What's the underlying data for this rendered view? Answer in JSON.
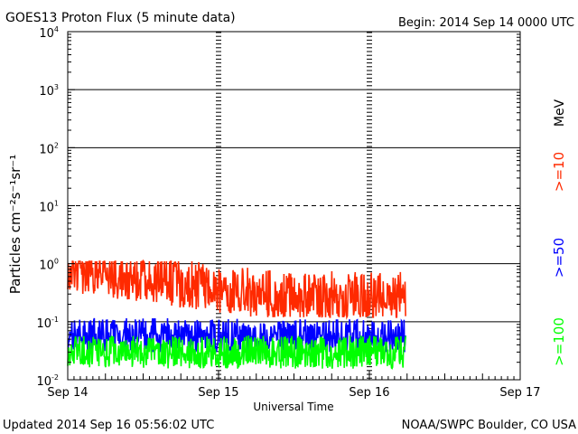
{
  "header": {
    "title": "GOES13 Proton Flux (5 minute data)",
    "begin": "Begin: 2014 Sep 14 0000 UTC"
  },
  "footer": {
    "updated": "Updated 2014 Sep 16 05:56:02 UTC",
    "credit": "NOAA/SWPC Boulder, CO USA"
  },
  "chart_data": {
    "type": "line",
    "title": "GOES13 Proton Flux (5 minute data)",
    "xlabel": "Universal Time",
    "ylabel": "Particles cm⁻²s⁻¹sr⁻¹",
    "x_ticks": [
      "Sep 14",
      "Sep 15",
      "Sep 16",
      "Sep 17"
    ],
    "xlim_days": [
      0,
      3
    ],
    "yscale": "log",
    "ylim": [
      0.01,
      10000
    ],
    "y_ticks": [
      {
        "base": "10",
        "exp": "-2",
        "value": 0.01
      },
      {
        "base": "10",
        "exp": "-1",
        "value": 0.1
      },
      {
        "base": "10",
        "exp": "0",
        "value": 1
      },
      {
        "base": "10",
        "exp": "1",
        "value": 10
      },
      {
        "base": "10",
        "exp": "2",
        "value": 100
      },
      {
        "base": "10",
        "exp": "3",
        "value": 1000
      },
      {
        "base": "10",
        "exp": "4",
        "value": 10000
      }
    ],
    "threshold_dashed_at": 10,
    "unit_label": "MeV",
    "series": [
      {
        "name": ">=10",
        "color": "#ff2a00",
        "data_end_day": 2.24,
        "start_level": 0.85,
        "end_level": 0.28,
        "low": 0.12,
        "high": 1.1
      },
      {
        "name": ">=50",
        "color": "#0000ff",
        "data_end_day": 2.24,
        "start_level": 0.06,
        "end_level": 0.055,
        "low": 0.03,
        "high": 0.14
      },
      {
        "name": ">=100",
        "color": "#00ff00",
        "data_end_day": 2.24,
        "start_level": 0.03,
        "end_level": 0.03,
        "low": 0.015,
        "high": 0.065
      }
    ]
  }
}
